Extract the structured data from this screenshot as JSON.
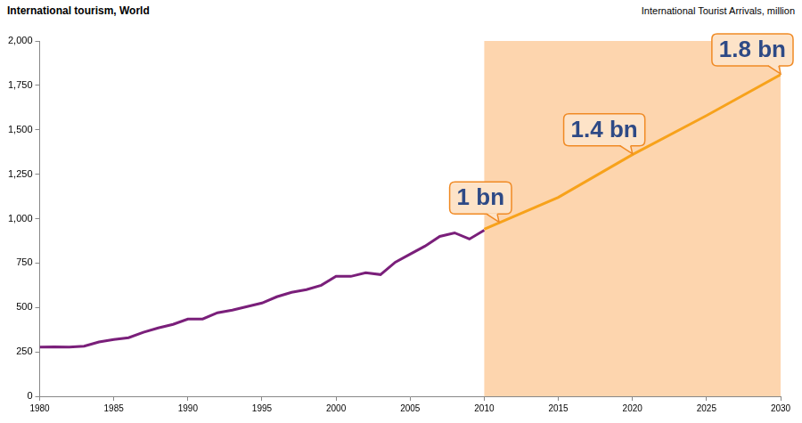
{
  "chart_data": {
    "type": "line",
    "title": "International tourism, World",
    "subtitle": "International Tourist Arrivals, million",
    "series": [
      {
        "color": "#7a1f7a",
        "x": [
          1980,
          1981,
          1982,
          1983,
          1984,
          1985,
          1986,
          1987,
          1988,
          1989,
          1990,
          1991,
          1992,
          1993,
          1994,
          1995,
          1996,
          1997,
          1998,
          1999,
          2000,
          2001,
          2002,
          2003,
          2004,
          2005,
          2006,
          2007,
          2008,
          2009,
          2010
        ],
        "values": [
          277,
          278,
          277,
          282,
          306,
          320,
          330,
          360,
          385,
          405,
          435,
          435,
          470,
          485,
          505,
          525,
          560,
          585,
          600,
          625,
          675,
          675,
          695,
          685,
          755,
          800,
          845,
          900,
          920,
          885,
          935
        ]
      },
      {
        "color": "#f7a21b",
        "x": [
          2010,
          2015,
          2020,
          2025,
          2030
        ],
        "values": [
          940,
          1120,
          1360,
          1580,
          1810
        ]
      }
    ],
    "annotations": [
      {
        "text": "1 bn",
        "x": 2011,
        "y": 976
      },
      {
        "text": "1.4 bn",
        "x": 2020,
        "y": 1360
      },
      {
        "text": "1.8 bn",
        "x": 2030,
        "y": 1810
      }
    ],
    "xlim": [
      1980,
      2030
    ],
    "xticks": [
      1980,
      1985,
      1990,
      1995,
      2000,
      2005,
      2010,
      2015,
      2020,
      2025,
      2030
    ],
    "ylim": [
      0,
      2000
    ],
    "yticks": [
      0,
      250,
      500,
      750,
      {
        "value": 1000,
        "label": "1,000"
      },
      {
        "value": 1250,
        "label": "1,250"
      },
      {
        "value": 1500,
        "label": "1,500"
      },
      {
        "value": 1750,
        "label": "1,750"
      },
      {
        "value": 2000,
        "label": "2,000"
      }
    ],
    "grid": false
  }
}
